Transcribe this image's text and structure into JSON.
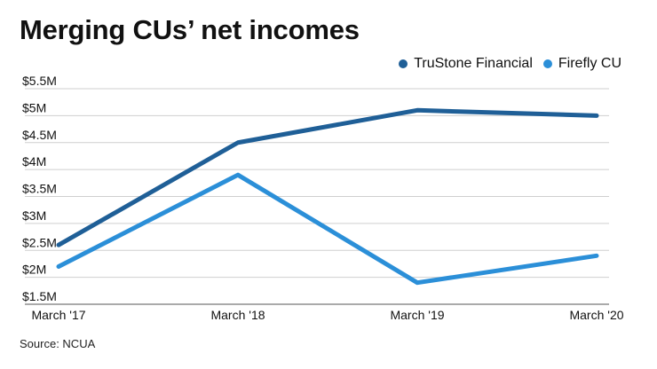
{
  "title": "Merging CUs’ net incomes",
  "source": "Source: NCUA",
  "chart_data": {
    "type": "line",
    "title": "Merging CUs’ net incomes",
    "x": [
      "March '17",
      "March '18",
      "March '19",
      "March '20"
    ],
    "series": [
      {
        "name": "TruStone Financial",
        "color": "#1f5f97",
        "values": [
          2.6,
          4.5,
          5.1,
          5.0
        ]
      },
      {
        "name": "Firefly CU",
        "color": "#2b8fd8",
        "values": [
          2.2,
          3.9,
          1.9,
          2.4
        ]
      }
    ],
    "y_ticks": [
      1.5,
      2,
      2.5,
      3,
      3.5,
      4,
      4.5,
      5,
      5.5
    ],
    "y_tick_labels": [
      "$1.5M",
      "$2M",
      "$2.5M",
      "$3M",
      "$3.5M",
      "$4M",
      "$4.5M",
      "$5M",
      "$5.5M"
    ],
    "ylim": [
      1.5,
      5.5
    ],
    "grid": true,
    "legend": "top-right",
    "xlabel": "",
    "ylabel": "",
    "source": "Source: NCUA"
  }
}
